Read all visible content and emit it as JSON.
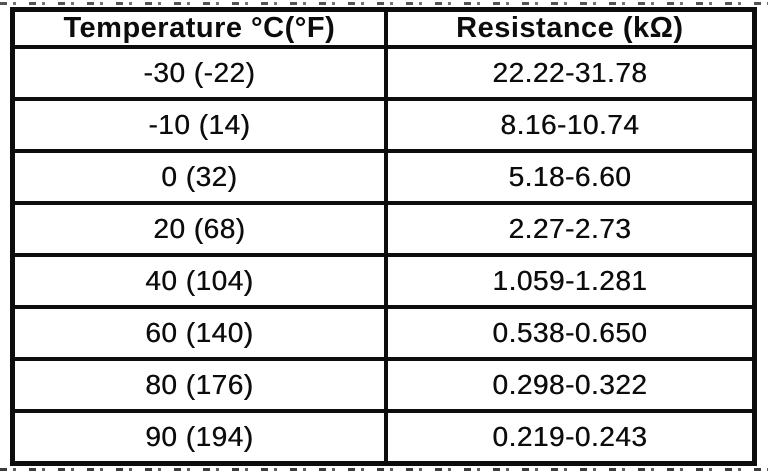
{
  "table": {
    "columns": {
      "temperature": "Temperature °C(°F)",
      "resistance": "Resistance (kΩ)"
    },
    "rows": [
      {
        "temperature": "-30 (-22)",
        "resistance": "22.22-31.78"
      },
      {
        "temperature": "-10 (14)",
        "resistance": "8.16-10.74"
      },
      {
        "temperature": "0 (32)",
        "resistance": "5.18-6.60"
      },
      {
        "temperature": "20 (68)",
        "resistance": "2.27-2.73"
      },
      {
        "temperature": "40 (104)",
        "resistance": "1.059-1.281"
      },
      {
        "temperature": "60 (140)",
        "resistance": "0.538-0.650"
      },
      {
        "temperature": "80 (176)",
        "resistance": "0.298-0.322"
      },
      {
        "temperature": "90 (194)",
        "resistance": "0.219-0.243"
      }
    ]
  },
  "chart_data": {
    "type": "table",
    "title": "",
    "columns": [
      "Temperature °C(°F)",
      "Resistance (kΩ)"
    ],
    "rows": [
      [
        "-30 (-22)",
        "22.22-31.78"
      ],
      [
        "-10 (14)",
        "8.16-10.74"
      ],
      [
        "0 (32)",
        "5.18-6.60"
      ],
      [
        "20 (68)",
        "2.27-2.73"
      ],
      [
        "40 (104)",
        "1.059-1.281"
      ],
      [
        "60 (140)",
        "0.538-0.650"
      ],
      [
        "80 (176)",
        "0.298-0.322"
      ],
      [
        "90 (194)",
        "0.219-0.243"
      ]
    ]
  },
  "colors": {
    "ink": "#0d0d0d",
    "paper": "#ffffff"
  }
}
